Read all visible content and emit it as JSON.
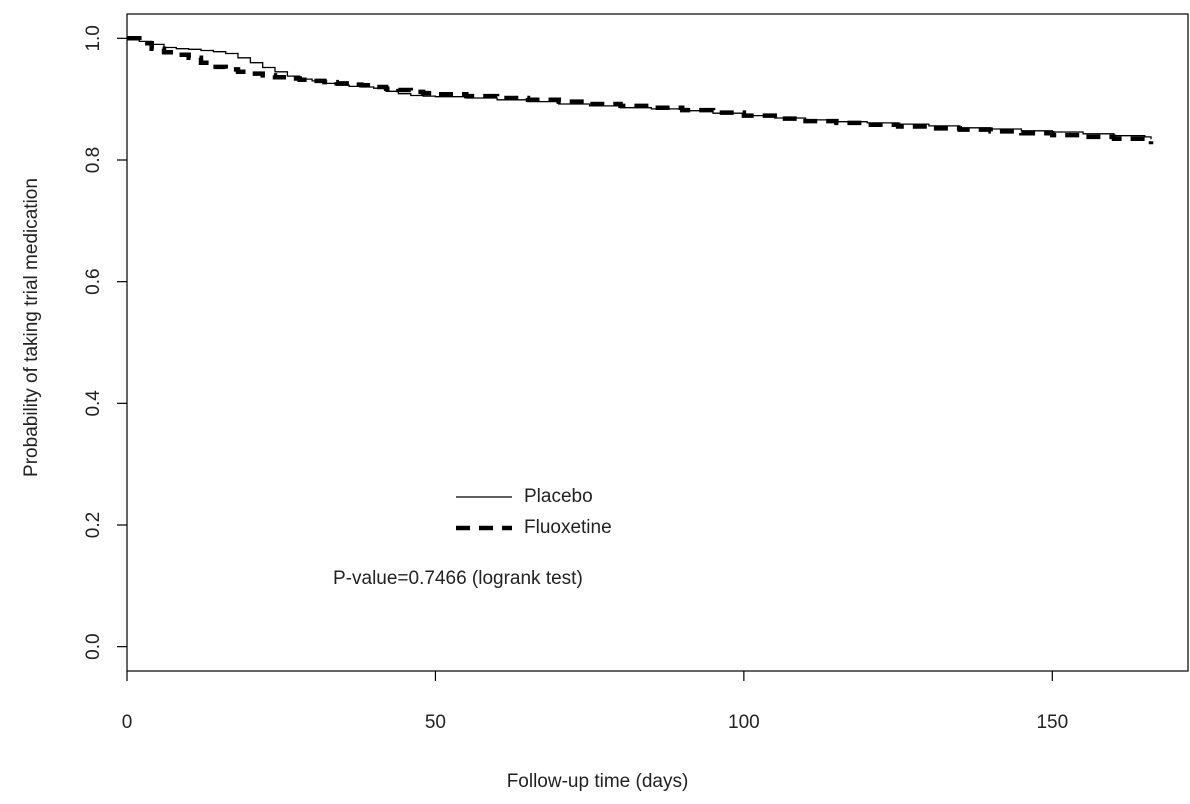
{
  "chart_data": {
    "type": "line",
    "title": "",
    "xlabel": "Follow-up time (days)",
    "ylabel": "Probability of taking trial medication",
    "xlim": [
      0,
      172
    ],
    "ylim": [
      -0.04,
      1.04
    ],
    "xticks": [
      0,
      50,
      100,
      150
    ],
    "xtick_labels": [
      "0",
      "50",
      "100",
      "150"
    ],
    "yticks": [
      0.0,
      0.2,
      0.4,
      0.6,
      0.8,
      1.0
    ],
    "ytick_labels": [
      "0.0",
      "0.2",
      "0.4",
      "0.6",
      "0.8",
      "1.0"
    ],
    "grid": false,
    "legend_position": "center-bottom",
    "annotation": "P-value=0.7466 (logrank test)",
    "series": [
      {
        "name": "Placebo",
        "style": "solid",
        "color": "#000000",
        "x": [
          0,
          2,
          4,
          6,
          8,
          10,
          12,
          14,
          16,
          18,
          20,
          22,
          24,
          26,
          28,
          30,
          32,
          34,
          36,
          38,
          40,
          42,
          44,
          46,
          48,
          50,
          55,
          60,
          65,
          70,
          75,
          80,
          85,
          90,
          95,
          100,
          105,
          110,
          115,
          120,
          125,
          130,
          135,
          140,
          145,
          150,
          155,
          160,
          165,
          166
        ],
        "y": [
          1.0,
          0.995,
          0.99,
          0.985,
          0.983,
          0.982,
          0.98,
          0.978,
          0.975,
          0.968,
          0.96,
          0.952,
          0.945,
          0.938,
          0.933,
          0.93,
          0.926,
          0.923,
          0.921,
          0.92,
          0.918,
          0.913,
          0.909,
          0.906,
          0.905,
          0.904,
          0.902,
          0.899,
          0.896,
          0.892,
          0.889,
          0.886,
          0.884,
          0.881,
          0.877,
          0.873,
          0.869,
          0.866,
          0.863,
          0.861,
          0.859,
          0.856,
          0.853,
          0.851,
          0.848,
          0.846,
          0.843,
          0.84,
          0.838,
          0.834
        ]
      },
      {
        "name": "Fluoxetine",
        "style": "dashed",
        "color": "#000000",
        "x": [
          0,
          2,
          4,
          6,
          8,
          10,
          12,
          14,
          16,
          18,
          20,
          22,
          24,
          26,
          28,
          30,
          32,
          34,
          36,
          38,
          40,
          42,
          44,
          46,
          48,
          50,
          55,
          60,
          65,
          70,
          75,
          80,
          85,
          90,
          95,
          100,
          105,
          110,
          115,
          120,
          125,
          130,
          135,
          140,
          145,
          150,
          155,
          160,
          165,
          166
        ],
        "y": [
          1.0,
          0.992,
          0.983,
          0.977,
          0.973,
          0.968,
          0.96,
          0.953,
          0.949,
          0.945,
          0.942,
          0.939,
          0.936,
          0.934,
          0.932,
          0.93,
          0.928,
          0.926,
          0.924,
          0.923,
          0.92,
          0.917,
          0.915,
          0.912,
          0.91,
          0.908,
          0.905,
          0.902,
          0.899,
          0.896,
          0.892,
          0.889,
          0.886,
          0.882,
          0.878,
          0.873,
          0.868,
          0.864,
          0.861,
          0.858,
          0.855,
          0.852,
          0.85,
          0.847,
          0.844,
          0.841,
          0.838,
          0.835,
          0.832,
          0.826
        ]
      }
    ]
  }
}
